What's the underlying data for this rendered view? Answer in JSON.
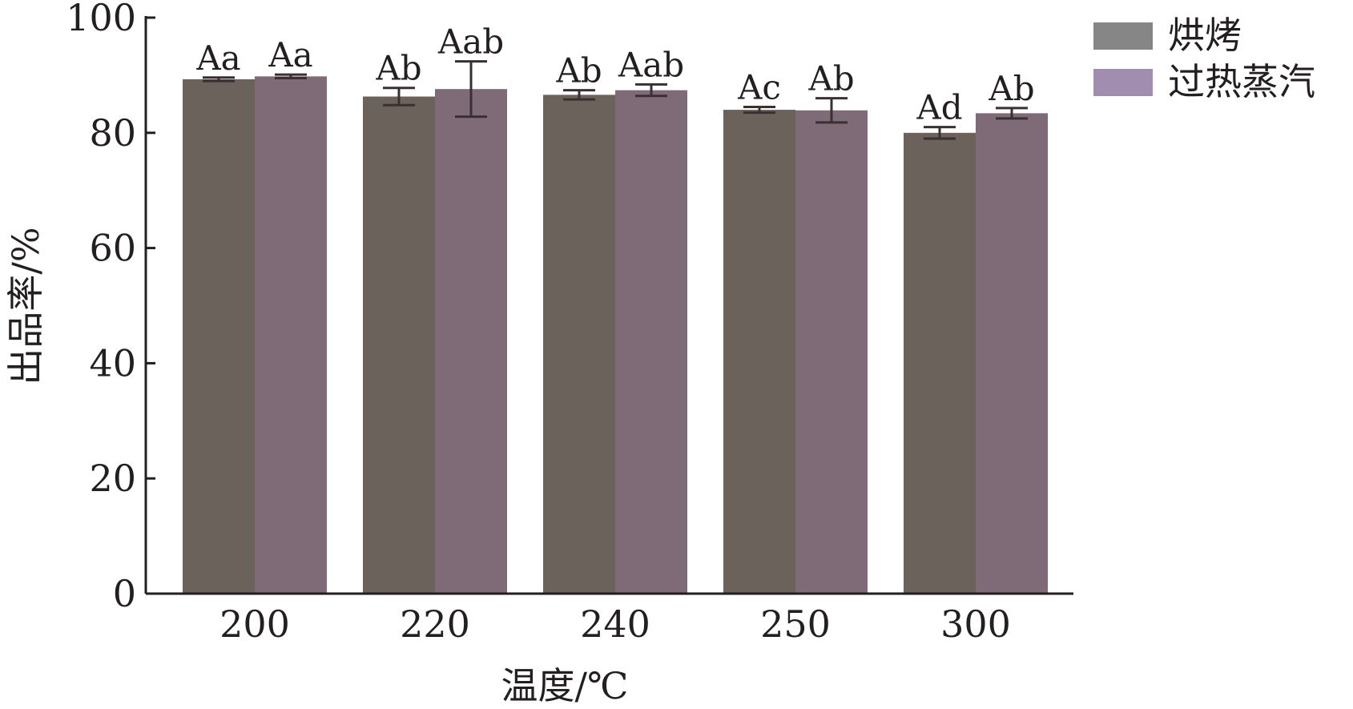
{
  "chart_data": {
    "type": "bar",
    "categories": [
      "200",
      "220",
      "240",
      "250",
      "300"
    ],
    "series": [
      {
        "name": "烘烤",
        "color": "#6b625c",
        "values": [
          89.3,
          86.3,
          86.6,
          84.0,
          80.0
        ],
        "errors": [
          0.3,
          1.5,
          0.8,
          0.5,
          1.0
        ],
        "labels": [
          "Aa",
          "Ab",
          "Ab",
          "Ac",
          "Ad"
        ]
      },
      {
        "name": "过热蒸汽",
        "color": "#7e6b77",
        "values": [
          89.8,
          87.6,
          87.4,
          83.9,
          83.4
        ],
        "errors": [
          0.3,
          4.8,
          1.0,
          2.1,
          0.9
        ],
        "labels": [
          "Aa",
          "Aab",
          "Aab",
          "Ab",
          "Ab"
        ]
      }
    ],
    "legend": {
      "position": "top-right",
      "swatch_colors": [
        "#868686",
        "#a08daf"
      ]
    },
    "xlabel": "温度/℃",
    "ylabel": "出品率/%",
    "ylim": [
      0,
      100
    ],
    "yticks": [
      0,
      20,
      40,
      60,
      80,
      100
    ],
    "grid": false,
    "axis_color": "#231f20",
    "error_bar_color": "#3a2f33"
  }
}
